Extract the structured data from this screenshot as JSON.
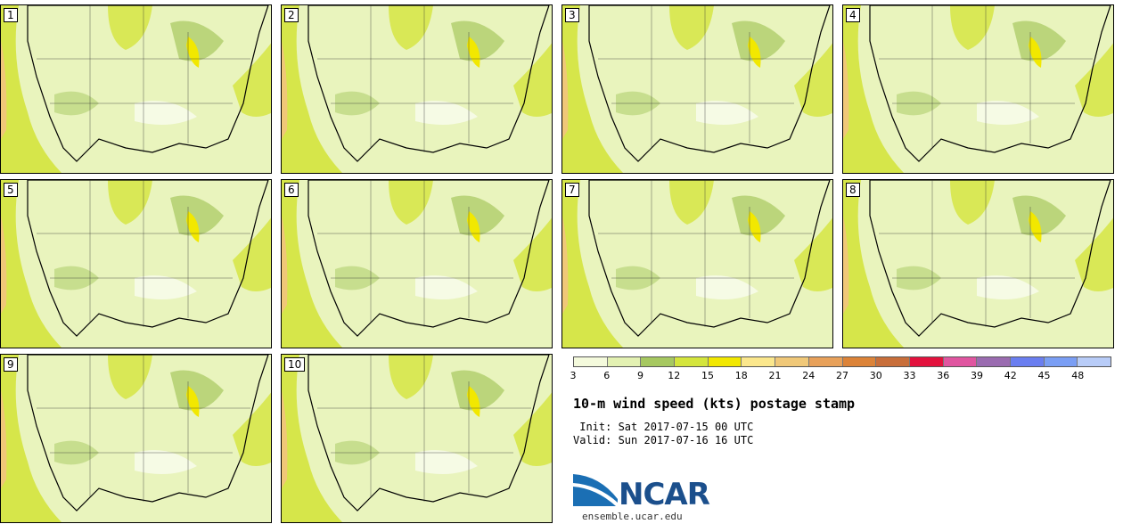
{
  "panels": [
    "1",
    "2",
    "3",
    "4",
    "5",
    "6",
    "7",
    "8",
    "9",
    "10"
  ],
  "colorbar": {
    "colors": [
      "#f4fadc",
      "#e3f1b2",
      "#a6c860",
      "#d4e53c",
      "#f2e800",
      "#fbe78c",
      "#f0c878",
      "#e8a15a",
      "#dc8338",
      "#c86e3a",
      "#e3113d",
      "#e055a0",
      "#9a6bb0",
      "#6a7ef0",
      "#7a9ef4",
      "#b8ccf8"
    ],
    "ticks": [
      "3",
      "6",
      "9",
      "12",
      "15",
      "18",
      "21",
      "24",
      "27",
      "30",
      "33",
      "36",
      "39",
      "42",
      "45",
      "48"
    ]
  },
  "title": "10-m wind speed (kts) postage stamp",
  "init": " Init: Sat 2017-07-15 00 UTC",
  "valid": "Valid: Sun 2017-07-16 16 UTC",
  "logo": {
    "text": "NCAR",
    "website": "ensemble.ucar.edu"
  },
  "colors": {
    "logo_blue": "#1b6fb4",
    "land_light": "#e7f3b6",
    "ocean_yellow": "#f2e800"
  }
}
